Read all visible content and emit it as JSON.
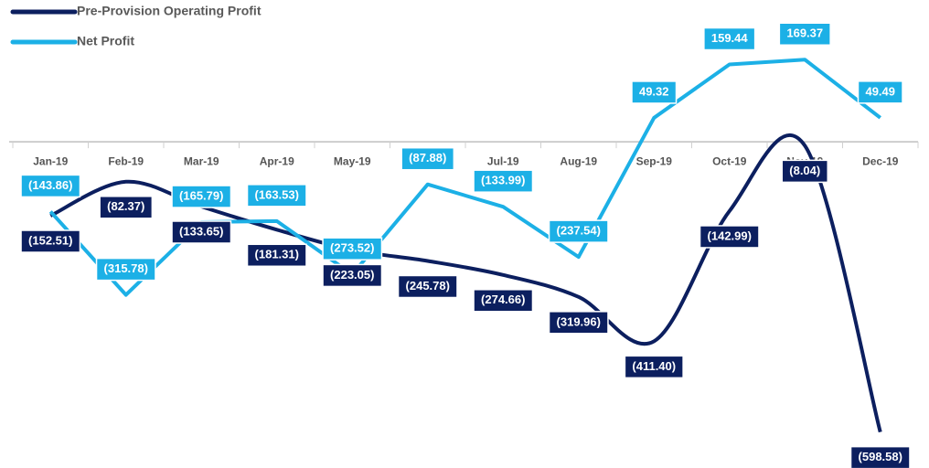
{
  "chart_data": {
    "type": "line",
    "categories": [
      "Jan-19",
      "Feb-19",
      "Mar-19",
      "Apr-19",
      "May-19",
      "Jun-19",
      "Jul-19",
      "Aug-19",
      "Sep-19",
      "Oct-19",
      "Nov-19",
      "Dec-19"
    ],
    "series": [
      {
        "name": "Pre-Provision Operating Profit",
        "color": "#0c1f5f",
        "values": [
          -152.51,
          -82.37,
          -133.65,
          -181.31,
          -223.05,
          -245.78,
          -274.66,
          -319.96,
          -411.4,
          -142.99,
          -8.04,
          -598.58
        ],
        "value_labels": [
          "(152.51)",
          "(82.37)",
          "(133.65)",
          "(181.31)",
          "(223.05)",
          "(245.78)",
          "(274.66)",
          "(319.96)",
          "(411.40)",
          "(142.99)",
          "(8.04)",
          "(598.58)"
        ]
      },
      {
        "name": "Net Profit",
        "color": "#1cb0e6",
        "values": [
          -143.86,
          -315.78,
          -165.79,
          -163.53,
          -273.52,
          -87.88,
          -133.99,
          -237.54,
          49.32,
          159.44,
          169.37,
          49.49
        ],
        "value_labels": [
          "(143.86)",
          "(315.78)",
          "(165.79)",
          "(163.53)",
          "(273.52)",
          "(87.88)",
          "(133.99)",
          "(237.54)",
          "49.32",
          "159.44",
          "169.37",
          "49.49"
        ]
      }
    ],
    "ylim": [
      -620,
      200
    ],
    "legend": "top-left"
  }
}
